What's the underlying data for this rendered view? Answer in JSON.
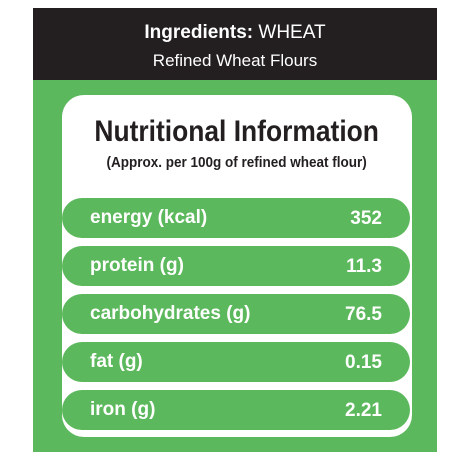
{
  "header": {
    "ingredients_label": "Ingredients:",
    "ingredients": "WHEAT",
    "subtitle": "Refined Wheat Flours"
  },
  "panel": {
    "title": "Nutritional Information",
    "subtitle": "(Approx. per 100g of refined wheat flour)",
    "rows": [
      {
        "label": "energy (kcal)",
        "value": 352
      },
      {
        "label": "protein (g)",
        "value": 11.3
      },
      {
        "label": "carbohydrates (g)",
        "value": 76.5
      },
      {
        "label": "fat (g)",
        "value": 0.15
      },
      {
        "label": "iron (g)",
        "value": 2.21
      }
    ]
  }
}
